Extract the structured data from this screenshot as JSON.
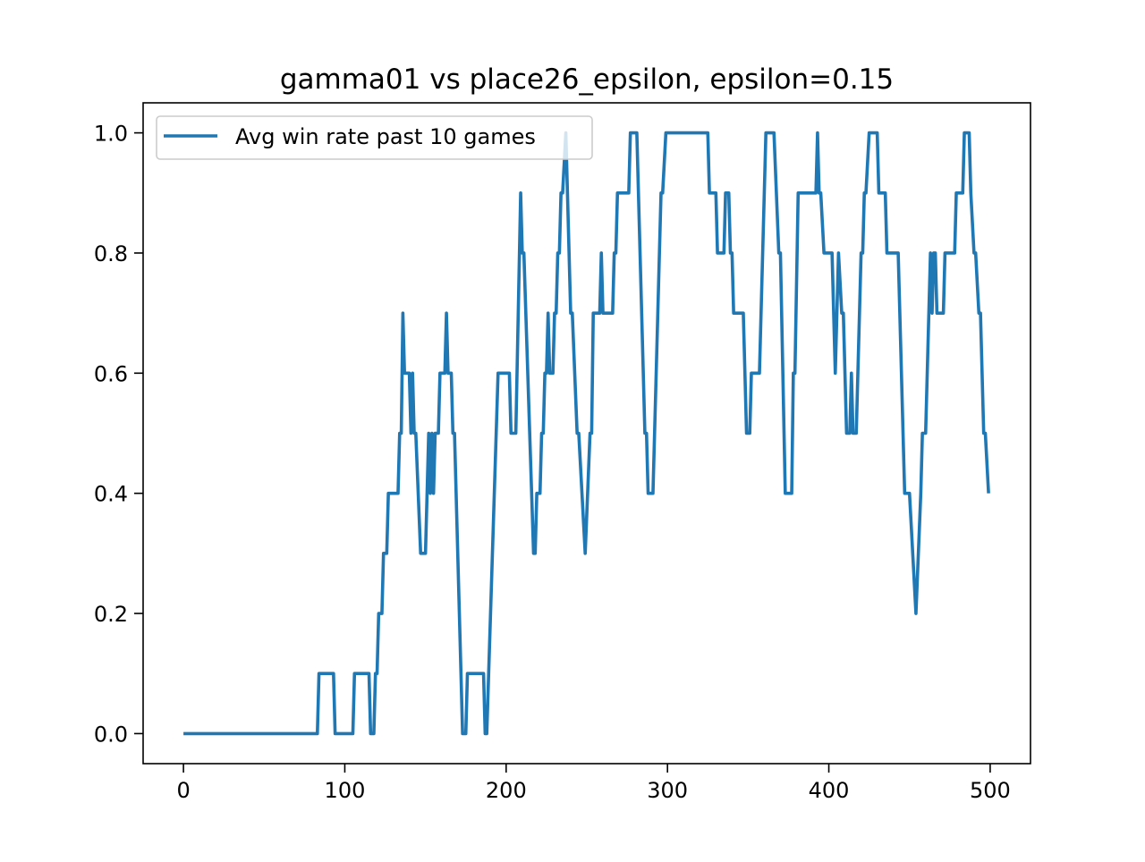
{
  "chart_data": {
    "type": "line",
    "title": "gamma01 vs place26_epsilon, epsilon=0.15",
    "x": [
      0,
      83,
      84,
      93,
      94,
      105,
      106,
      115,
      116,
      118,
      119,
      120,
      121,
      123,
      124,
      126,
      127,
      133,
      134,
      135,
      136,
      137,
      140,
      141,
      142,
      143,
      144,
      147,
      150,
      152,
      153,
      154,
      155,
      156,
      158,
      159,
      162,
      163,
      164,
      166,
      167,
      168,
      173,
      175,
      176,
      186,
      187,
      188,
      195,
      202,
      203,
      206,
      209,
      210,
      211,
      217,
      218,
      219,
      221,
      222,
      223,
      224,
      225,
      226,
      227,
      229,
      230,
      231,
      232,
      233,
      234,
      235,
      237,
      238,
      240,
      241,
      244,
      245,
      249,
      252,
      253,
      254,
      258,
      259,
      260,
      266,
      267,
      268,
      269,
      276,
      277,
      281,
      286,
      287,
      288,
      291,
      296,
      297,
      299,
      325,
      326,
      330,
      331,
      335,
      336,
      338,
      339,
      340,
      341,
      347,
      349,
      351,
      352,
      357,
      361,
      366,
      369,
      370,
      373,
      377,
      378,
      379,
      381,
      392,
      393,
      394,
      395,
      397,
      402,
      404,
      405,
      406,
      408,
      409,
      411,
      413,
      414,
      415,
      417,
      420,
      421,
      422,
      423,
      425,
      430,
      431,
      435,
      436,
      443,
      447,
      450,
      454,
      457,
      458,
      460,
      463,
      464,
      465,
      466,
      467,
      471,
      472,
      478,
      479,
      483,
      484,
      487,
      488,
      490,
      491,
      493,
      494,
      496,
      497,
      499
    ],
    "series": [
      {
        "name": "Avg win rate past 10 games",
        "color": "#1f77b4",
        "values": [
          0,
          0,
          0.1,
          0.1,
          0,
          0,
          0.1,
          0.1,
          0,
          0,
          0.1,
          0.1,
          0.2,
          0.2,
          0.3,
          0.3,
          0.4,
          0.4,
          0.5,
          0.5,
          0.7,
          0.6,
          0.6,
          0.5,
          0.6,
          0.5,
          0.5,
          0.3,
          0.3,
          0.5,
          0.4,
          0.5,
          0.4,
          0.5,
          0.5,
          0.6,
          0.6,
          0.7,
          0.6,
          0.6,
          0.5,
          0.5,
          0,
          0,
          0.1,
          0.1,
          0,
          0,
          0.6,
          0.6,
          0.5,
          0.5,
          0.9,
          0.8,
          0.8,
          0.3,
          0.3,
          0.4,
          0.4,
          0.5,
          0.5,
          0.6,
          0.6,
          0.7,
          0.6,
          0.6,
          0.7,
          0.7,
          0.8,
          0.8,
          0.9,
          0.9,
          1.0,
          0.9,
          0.7,
          0.7,
          0.5,
          0.5,
          0.3,
          0.5,
          0.5,
          0.7,
          0.7,
          0.8,
          0.7,
          0.7,
          0.8,
          0.8,
          0.9,
          0.9,
          1.0,
          1.0,
          0.5,
          0.5,
          0.4,
          0.4,
          0.9,
          0.9,
          1.0,
          1.0,
          0.9,
          0.9,
          0.8,
          0.8,
          0.9,
          0.9,
          0.8,
          0.8,
          0.7,
          0.7,
          0.5,
          0.5,
          0.6,
          0.6,
          1.0,
          1.0,
          0.8,
          0.8,
          0.4,
          0.4,
          0.6,
          0.6,
          0.9,
          0.9,
          1.0,
          0.9,
          0.9,
          0.8,
          0.8,
          0.6,
          0.7,
          0.8,
          0.7,
          0.7,
          0.5,
          0.5,
          0.6,
          0.5,
          0.5,
          0.8,
          0.8,
          0.9,
          0.9,
          1.0,
          1.0,
          0.9,
          0.9,
          0.8,
          0.8,
          0.4,
          0.4,
          0.2,
          0.4,
          0.5,
          0.5,
          0.8,
          0.7,
          0.8,
          0.8,
          0.7,
          0.7,
          0.8,
          0.8,
          0.9,
          0.9,
          1.0,
          1.0,
          0.9,
          0.8,
          0.8,
          0.7,
          0.7,
          0.5,
          0.5,
          0.4
        ]
      }
    ],
    "xlim": [
      -25,
      525
    ],
    "ylim": [
      -0.05,
      1.05
    ],
    "xticks": [
      0,
      100,
      200,
      300,
      400,
      500
    ],
    "yticks": [
      {
        "value": 0,
        "label": "0.0"
      },
      0.2,
      0.4,
      0.6,
      0.8,
      {
        "value": 1,
        "label": "1.0"
      }
    ],
    "legend": "upper left",
    "grid": false
  }
}
